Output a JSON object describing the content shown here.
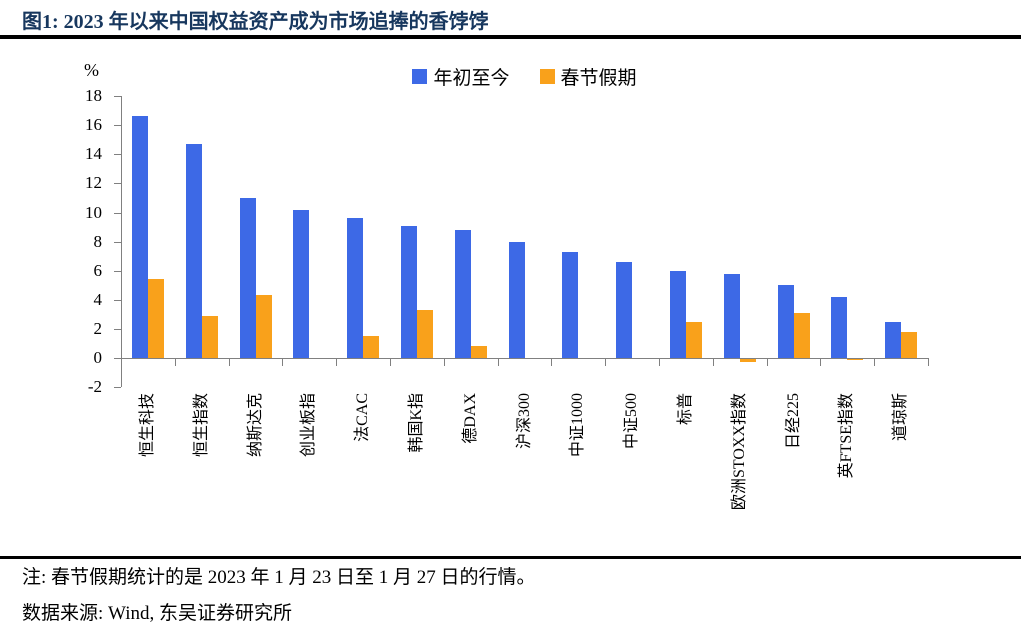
{
  "title": "图1:  2023 年以来中国权益资产成为市场追捧的香饽饽",
  "chart_data": {
    "type": "bar",
    "title": "2023 年以来中国权益资产成为市场追捧的香饽饽",
    "unit_label": "%",
    "categories": [
      "恒生科技",
      "恒生指数",
      "纳斯达克",
      "创业板指",
      "法CAC",
      "韩国K指",
      "德DAX",
      "沪深300",
      "中证1000",
      "中证500",
      "标普",
      "欧洲STOXX指数",
      "日经225",
      "英FTSE指数",
      "道琼斯"
    ],
    "series": [
      {
        "name": "年初至今",
        "color": "#3D69E6",
        "values": [
          16.6,
          14.7,
          11.0,
          10.2,
          9.6,
          9.1,
          8.8,
          8.0,
          7.3,
          6.6,
          6.0,
          5.8,
          5.0,
          4.2,
          2.5
        ]
      },
      {
        "name": "春节假期",
        "color": "#F9A11B",
        "values": [
          5.4,
          2.9,
          4.3,
          null,
          1.5,
          3.3,
          0.8,
          null,
          null,
          null,
          2.5,
          -0.2,
          3.1,
          -0.1,
          1.8
        ]
      }
    ],
    "ylim": [
      -2,
      18
    ],
    "ytick_step": 2,
    "legend_position": "top-center",
    "grid": false,
    "axis_color": "#808080"
  },
  "footer": {
    "note": "注: 春节假期统计的是 2023 年 1 月 23 日至 1 月 27 日的行情。",
    "source": "数据来源: Wind, 东吴证券研究所"
  }
}
